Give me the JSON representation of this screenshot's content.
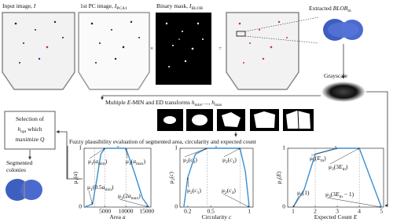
{
  "labels": {
    "input": [
      {
        "t": "Input image, "
      },
      {
        "i": "I"
      }
    ],
    "pc": [
      {
        "t": "1st PC image, "
      },
      {
        "i": "I"
      },
      {
        "sub": "PCA1"
      }
    ],
    "binary": [
      {
        "t": "Binary mask, "
      },
      {
        "i": "I"
      },
      {
        "sub": "BLOB"
      }
    ],
    "extracted": [
      {
        "t": "Extracted "
      },
      {
        "i": "BLOB"
      },
      {
        "sub": "m"
      }
    ],
    "grayscale": [
      {
        "t": "Grayscale"
      }
    ],
    "times": [
      {
        "t": "×"
      }
    ],
    "equals": [
      {
        "t": "="
      }
    ],
    "transforms": [
      {
        "t": "Multiple "
      },
      {
        "i": "E"
      },
      {
        "t": "-MIN and ED transforms "
      },
      {
        "i": "h"
      },
      {
        "sub": "min"
      },
      {
        "t": ", ..., "
      },
      {
        "i": "h"
      },
      {
        "sub": "max"
      }
    ],
    "selection": [
      [
        {
          "t": "Selection of"
        }
      ],
      [
        {
          "i": "h"
        },
        {
          "sub": "opt"
        },
        {
          "t": " which"
        }
      ],
      [
        {
          "t": "maximize "
        },
        {
          "i": "Q"
        }
      ]
    ],
    "segmented": [
      [
        {
          "t": "Segmented"
        }
      ],
      [
        {
          "t": "colonies"
        }
      ]
    ],
    "fuzzy": [
      {
        "t": "Fuzzy plausibility evaluation of segmented area, circularity and expected count"
      }
    ]
  },
  "charts": [
    {
      "ylabel": [
        {
          "t": "μ"
        },
        {
          "sub": "1"
        },
        {
          "t": "("
        },
        {
          "i": "a"
        },
        {
          "t": ")"
        }
      ],
      "xlabel": [
        {
          "t": "Area "
        },
        {
          "i": "a"
        }
      ],
      "xlim": [
        0,
        16000
      ],
      "ylim": [
        0,
        1
      ],
      "xticks": [
        5000,
        10000,
        15000
      ],
      "yticks": [
        0,
        1
      ],
      "x": [
        0,
        2000,
        3000,
        4000,
        5000,
        10000,
        12000,
        14000,
        15500
      ],
      "y": [
        0,
        0.05,
        0.45,
        0.9,
        1,
        1,
        0.6,
        0.15,
        0
      ],
      "guides": [
        2500,
        5000,
        10000
      ],
      "annotations": [
        [
          {
            "t": "μ"
          },
          {
            "sub": "1"
          },
          {
            "t": "("
          },
          {
            "i": "a"
          },
          {
            "sub": "min"
          },
          {
            "t": ")"
          }
        ],
        [
          {
            "t": "μ"
          },
          {
            "sub": "1"
          },
          {
            "t": "("
          },
          {
            "i": "a"
          },
          {
            "sub": "max"
          },
          {
            "t": ")"
          }
        ],
        [
          {
            "t": "μ"
          },
          {
            "sub": "1"
          },
          {
            "t": "(0.5"
          },
          {
            "i": "a"
          },
          {
            "sub": "min"
          },
          {
            "t": ")"
          }
        ],
        [
          {
            "t": "μ"
          },
          {
            "sub": "1"
          },
          {
            "t": "(2"
          },
          {
            "i": "a"
          },
          {
            "sub": "max"
          },
          {
            "t": ")"
          }
        ]
      ]
    },
    {
      "ylabel": [
        {
          "t": "μ"
        },
        {
          "sub": "2"
        },
        {
          "t": "("
        },
        {
          "i": "c"
        },
        {
          "t": ")"
        }
      ],
      "xlabel": [
        {
          "t": "Circularity "
        },
        {
          "i": "c"
        }
      ],
      "xlim": [
        0.1,
        1.05
      ],
      "ylim": [
        0,
        1
      ],
      "xticks": [
        0.2,
        0.5,
        1
      ],
      "yticks": [
        0,
        1
      ],
      "x": [
        0.15,
        0.2,
        0.3,
        0.45,
        0.88,
        0.95,
        1.0
      ],
      "y": [
        0,
        0.5,
        0.9,
        1,
        1,
        0.6,
        0
      ],
      "guides": [
        0.45,
        0.88
      ],
      "annotations": [
        [
          {
            "t": "μ"
          },
          {
            "sub": "2"
          },
          {
            "t": "("
          },
          {
            "i": "c"
          },
          {
            "sub": "2"
          },
          {
            "t": ")"
          }
        ],
        [
          {
            "t": "μ"
          },
          {
            "sub": "2"
          },
          {
            "t": "("
          },
          {
            "i": "c"
          },
          {
            "sub": "3"
          },
          {
            "t": ")"
          }
        ],
        [
          {
            "t": "μ"
          },
          {
            "sub": "2"
          },
          {
            "t": "("
          },
          {
            "i": "c"
          },
          {
            "sub": "1"
          },
          {
            "t": ")"
          }
        ],
        [
          {
            "t": "μ"
          },
          {
            "sub": "2"
          },
          {
            "t": "("
          },
          {
            "i": "c"
          },
          {
            "sub": "4"
          },
          {
            "t": ")"
          }
        ]
      ]
    },
    {
      "ylabel": [
        {
          "t": "μ"
        },
        {
          "sub": "3"
        },
        {
          "t": "("
        },
        {
          "i": "E"
        },
        {
          "t": ")"
        }
      ],
      "xlabel": [
        {
          "t": "Expected Count "
        },
        {
          "i": "E"
        }
      ],
      "xlim": [
        0.75,
        5.1
      ],
      "ylim": [
        0,
        1
      ],
      "xticks": [
        1,
        2,
        3,
        4,
        5
      ],
      "yticks": [
        0,
        1
      ],
      "x": [
        1,
        1.5,
        2,
        3,
        4,
        4.5,
        5
      ],
      "y": [
        0,
        0.3,
        0.9,
        1,
        1,
        0.5,
        0
      ],
      "guides": [
        2,
        4
      ],
      "annotations": [
        [
          {
            "t": "μ"
          },
          {
            "sub": "3"
          },
          {
            "t": "("
          },
          {
            "i": "E"
          },
          {
            "sub": "m"
          },
          {
            "t": ")"
          }
        ],
        [
          {
            "t": "μ"
          },
          {
            "sub": "3"
          },
          {
            "t": "(3"
          },
          {
            "i": "E"
          },
          {
            "sub": "m"
          },
          {
            "t": ")"
          }
        ],
        [
          {
            "t": "μ"
          },
          {
            "sub": "3"
          },
          {
            "t": "(1)"
          }
        ],
        [
          {
            "t": "μ"
          },
          {
            "sub": "3"
          },
          {
            "t": "(3"
          },
          {
            "i": "E"
          },
          {
            "sub": "m"
          },
          {
            "t": " − 1)"
          }
        ]
      ]
    }
  ]
}
